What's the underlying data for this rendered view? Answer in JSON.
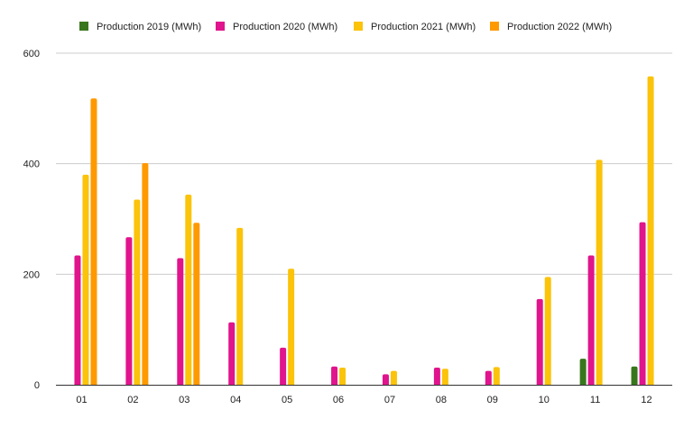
{
  "chart_data": {
    "type": "bar",
    "categories": [
      "01",
      "02",
      "03",
      "04",
      "05",
      "06",
      "07",
      "08",
      "09",
      "10",
      "11",
      "12"
    ],
    "series": [
      {
        "name": "Production 2019 (MWh)",
        "color": "#38761d",
        "values": [
          null,
          null,
          null,
          null,
          null,
          null,
          null,
          null,
          null,
          null,
          47,
          33
        ]
      },
      {
        "name": "Production 2020 (MWh)",
        "color": "#e0148c",
        "values": [
          234,
          267,
          229,
          113,
          67,
          33,
          19,
          31,
          25,
          155,
          234,
          294
        ]
      },
      {
        "name": "Production 2021 (MWh)",
        "color": "#fbc309",
        "values": [
          380,
          335,
          344,
          284,
          210,
          31,
          25,
          29,
          32,
          195,
          407,
          558
        ]
      },
      {
        "name": "Production 2022 (MWh)",
        "color": "#ff9900",
        "values": [
          518,
          401,
          293,
          null,
          null,
          null,
          null,
          null,
          null,
          null,
          null,
          null
        ]
      }
    ],
    "yticks": [
      0,
      200,
      400,
      600
    ],
    "ylim": [
      0,
      600
    ],
    "grid": true,
    "legend_position": "top"
  }
}
